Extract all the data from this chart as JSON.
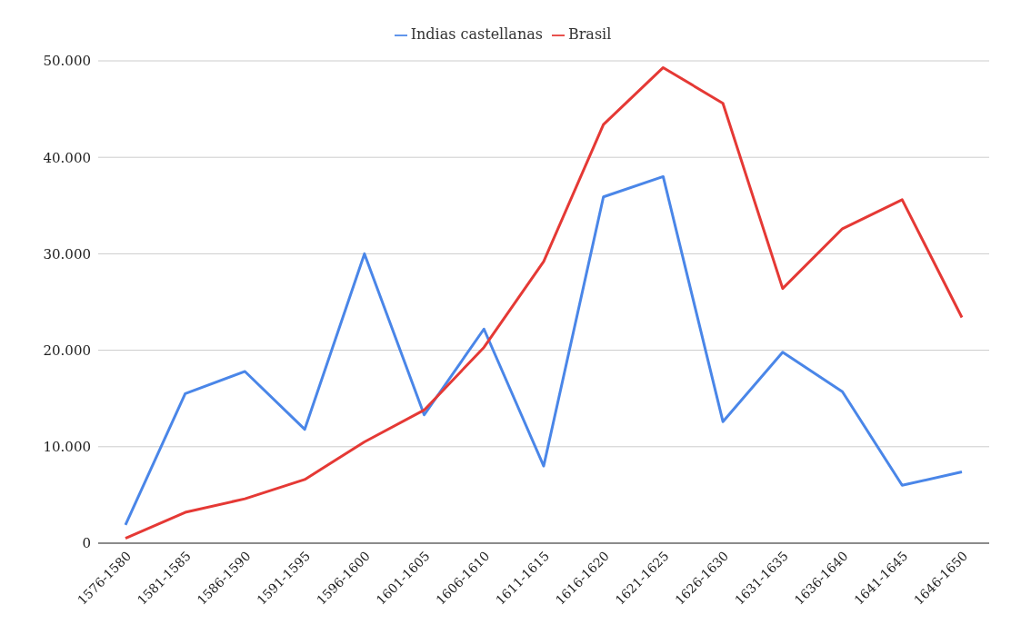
{
  "chart_data": {
    "type": "line",
    "categories": [
      "1576-1580",
      "1581-1585",
      "1586-1590",
      "1591-1595",
      "1596-1600",
      "1601-1605",
      "1606-1610",
      "1611-1615",
      "1616-1620",
      "1621-1625",
      "1626-1630",
      "1631-1635",
      "1636-1640",
      "1641-1645",
      "1646-1650"
    ],
    "series": [
      {
        "name": "Indias castellanas",
        "color": "#4a86e8",
        "values": [
          1900,
          15500,
          17800,
          11800,
          30000,
          13300,
          22200,
          8000,
          35900,
          38000,
          12600,
          19800,
          15700,
          6000,
          7400
        ]
      },
      {
        "name": "Brasil",
        "color": "#e53935",
        "values": [
          500,
          3200,
          4600,
          6600,
          10500,
          13800,
          20300,
          29200,
          43400,
          49300,
          45600,
          26400,
          32600,
          35600,
          23400
        ]
      }
    ],
    "ylim": [
      0,
      50000
    ],
    "yticks": [
      {
        "value": 0,
        "label": "0"
      },
      {
        "value": 10000,
        "label": "10.000"
      },
      {
        "value": 20000,
        "label": "20.000"
      },
      {
        "value": 30000,
        "label": "30.000"
      },
      {
        "value": 40000,
        "label": "40.000"
      },
      {
        "value": 50000,
        "label": "50.000"
      }
    ],
    "grid": "y",
    "legend": "top",
    "marker": "none",
    "line_style": "solid"
  }
}
